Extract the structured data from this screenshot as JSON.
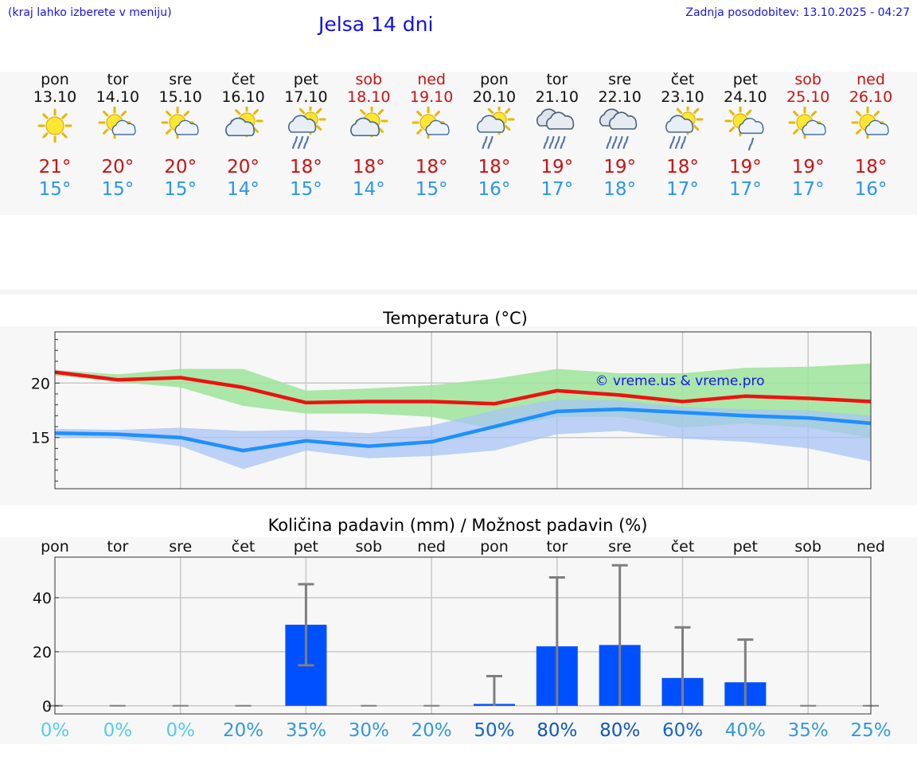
{
  "header": {
    "hint": "(kraj lahko izberete v meniju)",
    "title": "Jelsa 14 dni",
    "updated": "Zadnja posodobitev: 13.10.2025 - 04:27"
  },
  "days": [
    {
      "name": "pon",
      "date": "13.10",
      "weekend": false,
      "icon": "sunny",
      "tmax": "21°",
      "tmin": "15°"
    },
    {
      "name": "tor",
      "date": "14.10",
      "weekend": false,
      "icon": "sun-cloud",
      "tmax": "20°",
      "tmin": "15°"
    },
    {
      "name": "sre",
      "date": "15.10",
      "weekend": false,
      "icon": "sun-cloud",
      "tmax": "20°",
      "tmin": "15°"
    },
    {
      "name": "čet",
      "date": "16.10",
      "weekend": false,
      "icon": "cloud-sun",
      "tmax": "20°",
      "tmin": "14°"
    },
    {
      "name": "pet",
      "date": "17.10",
      "weekend": false,
      "icon": "cloud-sun-rain",
      "tmax": "18°",
      "tmin": "15°"
    },
    {
      "name": "sob",
      "date": "18.10",
      "weekend": true,
      "icon": "cloud-sun",
      "tmax": "18°",
      "tmin": "14°"
    },
    {
      "name": "ned",
      "date": "19.10",
      "weekend": true,
      "icon": "sun-cloud",
      "tmax": "18°",
      "tmin": "15°"
    },
    {
      "name": "pon",
      "date": "20.10",
      "weekend": false,
      "icon": "cloud-sun-drizzle",
      "tmax": "18°",
      "tmin": "16°"
    },
    {
      "name": "tor",
      "date": "21.10",
      "weekend": false,
      "icon": "rain-cloud",
      "tmax": "19°",
      "tmin": "17°"
    },
    {
      "name": "sre",
      "date": "22.10",
      "weekend": false,
      "icon": "rain-cloud",
      "tmax": "19°",
      "tmin": "18°"
    },
    {
      "name": "čet",
      "date": "23.10",
      "weekend": false,
      "icon": "cloud-sun-rain",
      "tmax": "18°",
      "tmin": "17°"
    },
    {
      "name": "pet",
      "date": "24.10",
      "weekend": false,
      "icon": "sun-cloud-drizzle",
      "tmax": "19°",
      "tmin": "17°"
    },
    {
      "name": "sob",
      "date": "25.10",
      "weekend": true,
      "icon": "sun-cloud",
      "tmax": "19°",
      "tmin": "17°"
    },
    {
      "name": "ned",
      "date": "26.10",
      "weekend": true,
      "icon": "sun-cloud",
      "tmax": "18°",
      "tmin": "16°"
    }
  ],
  "colors": {
    "max": "#ee1111",
    "min": "#1e90ff",
    "max_band": "#9ee49a",
    "min_band": "#a8c4f4",
    "bar": "#0050ff",
    "whisker": "#7f7f7f"
  },
  "chart_data": [
    {
      "type": "line",
      "title": "Temperatura (°C)",
      "watermark": "© vreme.us & vreme.pro",
      "x": [
        0,
        1,
        2,
        3,
        4,
        5,
        6,
        7,
        8,
        9,
        10,
        11,
        12,
        13
      ],
      "ylim": [
        10.3,
        24.7
      ],
      "yticks": [
        15,
        20
      ],
      "ytick_labels": [
        "15",
        "20"
      ],
      "series": [
        {
          "name": "max",
          "values": [
            21.0,
            20.3,
            20.5,
            19.6,
            18.2,
            18.3,
            18.3,
            18.1,
            19.3,
            18.9,
            18.3,
            18.8,
            18.6,
            18.3
          ],
          "band_low": [
            20.7,
            20.1,
            19.6,
            17.9,
            17.2,
            17.2,
            16.9,
            15.8,
            16.9,
            16.9,
            15.9,
            16.3,
            15.9,
            15.0
          ],
          "band_high": [
            21.2,
            20.8,
            21.3,
            21.3,
            19.3,
            19.5,
            19.8,
            20.4,
            21.3,
            20.9,
            20.9,
            21.4,
            21.5,
            21.8
          ]
        },
        {
          "name": "min",
          "values": [
            15.4,
            15.3,
            15.0,
            13.8,
            14.7,
            14.2,
            14.6,
            16.0,
            17.4,
            17.6,
            17.3,
            17.0,
            16.8,
            16.3
          ],
          "band_low": [
            15.1,
            14.9,
            14.2,
            12.1,
            13.8,
            13.1,
            13.3,
            13.8,
            15.3,
            15.6,
            14.9,
            14.6,
            14.0,
            12.8
          ],
          "band_high": [
            15.8,
            15.7,
            15.9,
            15.6,
            15.7,
            15.4,
            16.1,
            17.5,
            18.5,
            18.4,
            17.8,
            17.6,
            17.5,
            17.0
          ]
        }
      ]
    },
    {
      "type": "bar",
      "title": "Količina padavin (mm) / Možnost padavin (%)",
      "categories": [
        "pon",
        "tor",
        "sre",
        "čet",
        "pet",
        "sob",
        "ned",
        "pon",
        "tor",
        "sre",
        "čet",
        "pet",
        "sob",
        "ned"
      ],
      "ylim": [
        -3,
        55
      ],
      "yticks": [
        0,
        20,
        40
      ],
      "ytick_labels": [
        "0",
        "20",
        "40"
      ],
      "values": [
        0,
        0,
        0,
        0,
        30,
        0,
        0,
        0.7,
        22,
        22.5,
        10.3,
        8.7,
        0,
        0
      ],
      "err_low": [
        0,
        0,
        0,
        0,
        15,
        0,
        0,
        0,
        0,
        0,
        0,
        0,
        0,
        0
      ],
      "err_high": [
        0,
        0,
        0,
        0,
        45,
        0,
        0,
        11,
        47.5,
        52,
        29,
        24.5,
        0,
        0
      ],
      "probability_labels": [
        "0%",
        "0%",
        "0%",
        "20%",
        "35%",
        "30%",
        "20%",
        "50%",
        "80%",
        "80%",
        "60%",
        "40%",
        "35%",
        "25%"
      ],
      "probability_colors": [
        "#55ccee",
        "#55ccee",
        "#55ccee",
        "#3399dd",
        "#3399dd",
        "#3399dd",
        "#3399dd",
        "#1166cc",
        "#1155bb",
        "#1155bb",
        "#1166cc",
        "#3399dd",
        "#3399dd",
        "#3399dd"
      ]
    }
  ]
}
